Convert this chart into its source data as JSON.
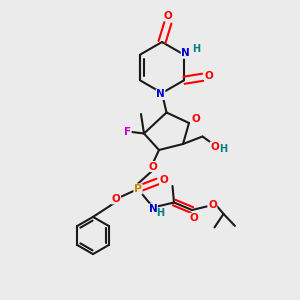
{
  "bg_color": "#ebebeb",
  "bond_color": "#1a1a1a",
  "bond_width": 1.5,
  "atom_colors": {
    "O": "#ff0000",
    "N": "#0000cc",
    "F": "#cc00cc",
    "P": "#cc8800",
    "H": "#008080",
    "C": "#1a1a1a"
  },
  "figsize": [
    3.0,
    3.0
  ],
  "dpi": 100
}
